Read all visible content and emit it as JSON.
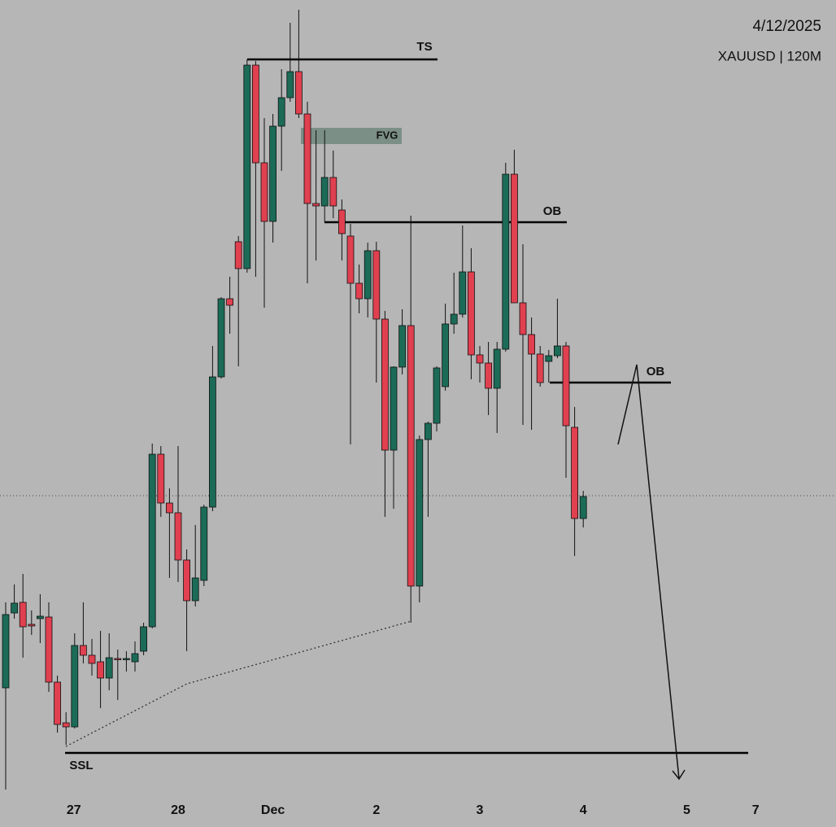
{
  "chart_data": {
    "type": "candlestick",
    "date": "4/12/2025",
    "symbol": "XAUUSD | 120M",
    "annotations": [
      "TS",
      "FVG",
      "OB",
      "OB",
      "SSL"
    ],
    "up_color": "#1b6b57",
    "down_color": "#e0404f",
    "xlim": [
      -0.66,
      96.32
    ],
    "ylim": [
      0,
      1016
    ],
    "xticks": [
      {
        "value": 7.9,
        "label": "27"
      },
      {
        "value": 20,
        "label": "28"
      },
      {
        "value": 31,
        "label": "Dec"
      },
      {
        "value": 43,
        "label": "2"
      },
      {
        "value": 55,
        "label": "3"
      },
      {
        "value": 67,
        "label": "4"
      },
      {
        "value": 79,
        "label": "5"
      },
      {
        "value": 87,
        "label": "7"
      }
    ],
    "open": [
      171,
      263,
      276,
      249,
      256,
      258,
      178,
      128,
      123,
      223,
      211,
      203,
      183,
      207,
      206,
      203,
      216,
      246,
      458,
      398,
      386,
      328,
      278,
      303,
      393,
      553,
      649,
      719,
      686,
      936,
      816,
      744,
      861,
      896,
      928,
      876,
      766,
      763,
      798,
      758,
      726,
      668,
      649,
      708,
      624,
      463,
      565,
      616,
      296,
      476,
      496,
      541,
      618,
      630,
      682,
      580,
      570,
      539,
      587,
      802,
      644,
      605,
      581,
      572,
      579,
      591,
      491,
      379
    ],
    "high": [
      276,
      298,
      311,
      266,
      286,
      276,
      186,
      141,
      238,
      276,
      231,
      241,
      238,
      218,
      216,
      228,
      251,
      471,
      468,
      416,
      468,
      341,
      371,
      396,
      591,
      651,
      676,
      726,
      943,
      941,
      871,
      876,
      931,
      988,
      1004,
      891,
      856,
      856,
      831,
      771,
      741,
      691,
      718,
      719,
      634,
      566,
      636,
      751,
      481,
      498,
      566,
      643,
      681,
      739,
      711,
      591,
      596,
      596,
      816,
      832,
      716,
      626,
      591,
      586,
      649,
      596,
      516,
      413
    ],
    "low": [
      46,
      256,
      208,
      236,
      226,
      166,
      116,
      101,
      121,
      201,
      186,
      146,
      168,
      156,
      191,
      191,
      211,
      244,
      381,
      306,
      301,
      216,
      271,
      296,
      388,
      551,
      606,
      566,
      681,
      676,
      638,
      718,
      806,
      891,
      871,
      668,
      696,
      743,
      748,
      696,
      470,
      631,
      626,
      546,
      381,
      391,
      556,
      251,
      276,
      381,
      486,
      536,
      606,
      626,
      550,
      546,
      506,
      484,
      584,
      644,
      494,
      488,
      541,
      546,
      576,
      429,
      333,
      368
    ],
    "close": [
      261,
      275,
      246,
      247,
      259,
      178,
      126,
      123,
      223,
      211,
      201,
      183,
      208,
      206,
      207,
      213,
      246,
      458,
      398,
      386,
      328,
      278,
      306,
      393,
      553,
      649,
      641,
      686,
      936,
      816,
      744,
      861,
      896,
      928,
      876,
      766,
      763,
      798,
      763,
      729,
      668,
      649,
      708,
      624,
      463,
      565,
      616,
      296,
      476,
      496,
      564,
      618,
      630,
      682,
      580,
      570,
      539,
      587,
      802,
      644,
      605,
      581,
      546,
      579,
      591,
      493,
      379,
      406
    ]
  }
}
